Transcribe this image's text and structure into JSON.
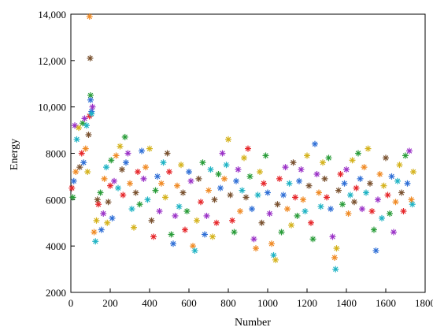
{
  "chart_data": {
    "type": "scatter",
    "xlabel": "Number",
    "ylabel": "Energy",
    "xlim": [
      0,
      1800
    ],
    "ylim": [
      2000,
      14000
    ],
    "x_ticks": [
      0,
      200,
      400,
      600,
      800,
      1000,
      1200,
      1400,
      1600,
      1800
    ],
    "x_tick_labels": [
      "0",
      "200",
      "400",
      "600",
      "800",
      "1000",
      "1200",
      "1400",
      "1600",
      "1800"
    ],
    "y_ticks": [
      2000,
      4000,
      6000,
      8000,
      10000,
      12000,
      14000
    ],
    "y_tick_labels": [
      "2000",
      "4000",
      "6000",
      "8000",
      "10,000",
      "12,000",
      "14,000"
    ],
    "grid": false,
    "legend": "none",
    "marker": "asterisk",
    "colors": [
      "#e6262a",
      "#2a9d3a",
      "#2f6fd6",
      "#9b33c7",
      "#f08a24",
      "#1fb3c4",
      "#d4b21c",
      "#7a5230"
    ],
    "series": [
      {
        "values": [
          [
            5,
            6500
          ],
          [
            10,
            6100
          ],
          [
            15,
            6800
          ],
          [
            20,
            9200
          ],
          [
            25,
            7200
          ],
          [
            30,
            8600
          ],
          [
            40,
            9100
          ],
          [
            45,
            7400
          ],
          [
            55,
            8000
          ],
          [
            60,
            9300
          ],
          [
            65,
            7600
          ],
          [
            70,
            9500
          ],
          [
            75,
            8200
          ],
          [
            80,
            9200
          ],
          [
            85,
            7200
          ],
          [
            90,
            8800
          ],
          [
            95,
            9600
          ],
          [
            100,
            10500
          ],
          [
            105,
            9800
          ],
          [
            110,
            10000
          ],
          [
            118,
            4600
          ],
          [
            125,
            4200
          ],
          [
            130,
            5100
          ],
          [
            135,
            6000
          ],
          [
            140,
            5800
          ],
          [
            150,
            6300
          ],
          [
            155,
            4700
          ],
          [
            165,
            5400
          ],
          [
            170,
            6900
          ],
          [
            180,
            7400
          ],
          [
            185,
            5000
          ],
          [
            190,
            5900
          ],
          [
            200,
            6600
          ],
          [
            205,
            7700
          ],
          [
            210,
            5200
          ],
          [
            220,
            6800
          ],
          [
            230,
            7900
          ],
          [
            240,
            6500
          ],
          [
            250,
            8300
          ],
          [
            260,
            7300
          ],
          [
            265,
            6200
          ],
          [
            275,
            8700
          ],
          [
            280,
            7600
          ],
          [
            290,
            8000
          ],
          [
            300,
            6700
          ],
          [
            310,
            5600
          ],
          [
            320,
            4800
          ],
          [
            330,
            6300
          ],
          [
            340,
            7200
          ],
          [
            350,
            5800
          ],
          [
            360,
            8100
          ],
          [
            370,
            6900
          ],
          [
            380,
            7400
          ],
          [
            390,
            6000
          ],
          [
            400,
            8200
          ],
          [
            410,
            5100
          ],
          [
            420,
            4400
          ],
          [
            430,
            6400
          ],
          [
            440,
            7000
          ],
          [
            450,
            5500
          ],
          [
            460,
            6700
          ],
          [
            470,
            7600
          ],
          [
            480,
            6100
          ],
          [
            490,
            8000
          ],
          [
            500,
            7200
          ],
          [
            510,
            4500
          ],
          [
            520,
            4100
          ],
          [
            530,
            5300
          ],
          [
            540,
            6600
          ],
          [
            550,
            5700
          ],
          [
            560,
            7500
          ],
          [
            570,
            6300
          ],
          [
            580,
            4700
          ],
          [
            590,
            5500
          ],
          [
            600,
            7200
          ],
          [
            610,
            6800
          ],
          [
            620,
            4000
          ],
          [
            630,
            3800
          ],
          [
            640,
            5100
          ],
          [
            650,
            6900
          ],
          [
            660,
            5900
          ],
          [
            670,
            7600
          ],
          [
            680,
            4500
          ],
          [
            690,
            5300
          ],
          [
            700,
            6400
          ],
          [
            710,
            7300
          ],
          [
            720,
            4400
          ],
          [
            730,
            6000
          ],
          [
            740,
            5000
          ],
          [
            750,
            7100
          ],
          [
            760,
            6500
          ],
          [
            770,
            8000
          ],
          [
            780,
            6900
          ],
          [
            790,
            7500
          ],
          [
            800,
            8600
          ],
          [
            810,
            6200
          ],
          [
            820,
            5100
          ],
          [
            830,
            4600
          ],
          [
            840,
            6800
          ],
          [
            850,
            7300
          ],
          [
            860,
            5500
          ],
          [
            870,
            6400
          ],
          [
            880,
            7800
          ],
          [
            890,
            6100
          ],
          [
            900,
            8200
          ],
          [
            910,
            7000
          ],
          [
            920,
            5600
          ],
          [
            930,
            4300
          ],
          [
            940,
            3900
          ],
          [
            950,
            6200
          ],
          [
            960,
            7200
          ],
          [
            970,
            5000
          ],
          [
            980,
            6700
          ],
          [
            990,
            7900
          ],
          [
            1000,
            6300
          ],
          [
            1010,
            5400
          ],
          [
            1020,
            4100
          ],
          [
            1030,
            3600
          ],
          [
            1040,
            3400
          ],
          [
            1050,
            5800
          ],
          [
            1060,
            6900
          ],
          [
            1070,
            4600
          ],
          [
            1080,
            6200
          ],
          [
            1090,
            7400
          ],
          [
            1100,
            5600
          ],
          [
            1110,
            6700
          ],
          [
            1120,
            4900
          ],
          [
            1130,
            7600
          ],
          [
            1140,
            6100
          ],
          [
            1150,
            5300
          ],
          [
            1160,
            6800
          ],
          [
            1170,
            7300
          ],
          [
            1180,
            6000
          ],
          [
            1190,
            5500
          ],
          [
            1200,
            7900
          ],
          [
            1210,
            6600
          ],
          [
            1220,
            5000
          ],
          [
            1230,
            4300
          ],
          [
            1240,
            8400
          ],
          [
            1250,
            7100
          ],
          [
            1260,
            6300
          ],
          [
            1270,
            5700
          ],
          [
            1280,
            7600
          ],
          [
            1290,
            6900
          ],
          [
            1300,
            6100
          ],
          [
            1310,
            7800
          ],
          [
            1320,
            5600
          ],
          [
            1330,
            4400
          ],
          [
            1340,
            3500
          ],
          [
            1345,
            3000
          ],
          [
            1350,
            3900
          ],
          [
            1360,
            6400
          ],
          [
            1370,
            7100
          ],
          [
            1380,
            5800
          ],
          [
            1390,
            6700
          ],
          [
            1400,
            7300
          ],
          [
            1410,
            5400
          ],
          [
            1420,
            6200
          ],
          [
            1430,
            7700
          ],
          [
            1440,
            5900
          ],
          [
            1450,
            6500
          ],
          [
            1460,
            8000
          ],
          [
            1470,
            6900
          ],
          [
            1480,
            5600
          ],
          [
            1490,
            7400
          ],
          [
            1500,
            6300
          ],
          [
            1510,
            8200
          ],
          [
            1520,
            6700
          ],
          [
            1530,
            5500
          ],
          [
            1540,
            4700
          ],
          [
            1550,
            3800
          ],
          [
            1560,
            6000
          ],
          [
            1570,
            7100
          ],
          [
            1580,
            5200
          ],
          [
            1590,
            6600
          ],
          [
            1600,
            7800
          ],
          [
            1610,
            6200
          ],
          [
            1620,
            5400
          ],
          [
            1630,
            7000
          ],
          [
            1640,
            4600
          ],
          [
            1650,
            5900
          ],
          [
            1660,
            6800
          ],
          [
            1670,
            7500
          ],
          [
            1680,
            6300
          ],
          [
            1690,
            5500
          ],
          [
            1700,
            7900
          ],
          [
            1710,
            6700
          ],
          [
            1720,
            8100
          ],
          [
            1730,
            6000
          ],
          [
            1735,
            5800
          ],
          [
            1740,
            7200
          ]
        ]
      }
    ],
    "outliers": [
      [
        95,
        13900
      ],
      [
        98,
        12100
      ],
      [
        100,
        10300
      ],
      [
        105,
        9700
      ]
    ]
  }
}
